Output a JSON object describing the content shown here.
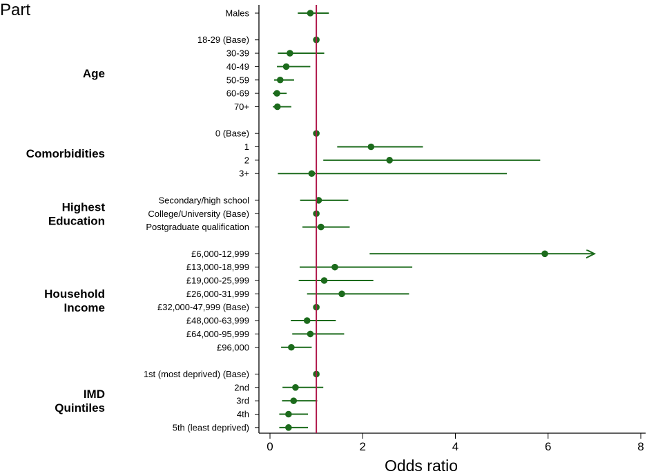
{
  "panel_label": "Part",
  "chart_data": {
    "type": "forest",
    "xlabel": "Odds ratio",
    "xlim": [
      0,
      8
    ],
    "xticks": [
      0,
      2,
      4,
      6,
      8
    ],
    "reference_line": 1,
    "colors": {
      "marker": "#1c6b1c",
      "reference": "#b0174a",
      "axis": "#000000"
    },
    "rows": [
      {
        "label": "Males",
        "group": "",
        "or": 0.87,
        "lo": 0.6,
        "hi": 1.27
      },
      {
        "label": "18-29 (Base)",
        "group": "Age",
        "or": 1.0,
        "lo": 1.0,
        "hi": 1.0
      },
      {
        "label": "30-39",
        "group": "Age",
        "or": 0.43,
        "lo": 0.17,
        "hi": 1.17
      },
      {
        "label": "40-49",
        "group": "Age",
        "or": 0.35,
        "lo": 0.15,
        "hi": 0.87
      },
      {
        "label": "50-59",
        "group": "Age",
        "or": 0.22,
        "lo": 0.09,
        "hi": 0.52
      },
      {
        "label": "60-69",
        "group": "Age",
        "or": 0.15,
        "lo": 0.06,
        "hi": 0.36
      },
      {
        "label": "70+",
        "group": "Age",
        "or": 0.16,
        "lo": 0.06,
        "hi": 0.46
      },
      {
        "label": "0 (Base)",
        "group": "Comorbidities",
        "or": 1.0,
        "lo": 1.0,
        "hi": 1.0
      },
      {
        "label": "1",
        "group": "Comorbidities",
        "or": 2.18,
        "lo": 1.45,
        "hi": 3.3
      },
      {
        "label": "2",
        "group": "Comorbidities",
        "or": 2.58,
        "lo": 1.15,
        "hi": 5.83
      },
      {
        "label": "3+",
        "group": "Comorbidities",
        "or": 0.9,
        "lo": 0.17,
        "hi": 5.11
      },
      {
        "label": "Secondary/high school",
        "group": "Highest Education",
        "or": 1.05,
        "lo": 0.65,
        "hi": 1.69
      },
      {
        "label": "College/University (Base)",
        "group": "Highest Education",
        "or": 1.0,
        "lo": 1.0,
        "hi": 1.0
      },
      {
        "label": "Postgraduate qualification",
        "group": "Highest Education",
        "or": 1.1,
        "lo": 0.7,
        "hi": 1.72
      },
      {
        "label": "£6,000-12,999",
        "group": "Household Income",
        "or": 5.93,
        "lo": 2.15,
        "hi": 7.0,
        "arrow": true
      },
      {
        "label": "£13,000-18,999",
        "group": "Household Income",
        "or": 1.4,
        "lo": 0.64,
        "hi": 3.07
      },
      {
        "label": "£19,000-25,999",
        "group": "Household Income",
        "or": 1.17,
        "lo": 0.62,
        "hi": 2.23
      },
      {
        "label": "£26,000-31,999",
        "group": "Household Income",
        "or": 1.55,
        "lo": 0.8,
        "hi": 3.0
      },
      {
        "label": "£32,000-47,999 (Base)",
        "group": "Household Income",
        "or": 1.0,
        "lo": 1.0,
        "hi": 1.0
      },
      {
        "label": "£48,000-63,999",
        "group": "Household Income",
        "or": 0.8,
        "lo": 0.45,
        "hi": 1.42
      },
      {
        "label": "£64,000-95,999",
        "group": "Household Income",
        "or": 0.87,
        "lo": 0.48,
        "hi": 1.6
      },
      {
        "label": "£96,000",
        "group": "Household Income",
        "or": 0.46,
        "lo": 0.24,
        "hi": 0.9
      },
      {
        "label": "1st (most deprived) (Base)",
        "group": "IMD Quintiles",
        "or": 1.0,
        "lo": 1.0,
        "hi": 1.0
      },
      {
        "label": "2nd",
        "group": "IMD Quintiles",
        "or": 0.55,
        "lo": 0.27,
        "hi": 1.15
      },
      {
        "label": "3rd",
        "group": "IMD Quintiles",
        "or": 0.51,
        "lo": 0.26,
        "hi": 1.02
      },
      {
        "label": "4th",
        "group": "IMD Quintiles",
        "or": 0.4,
        "lo": 0.2,
        "hi": 0.82
      },
      {
        "label": "5th (least deprived)",
        "group": "IMD Quintiles",
        "or": 0.4,
        "lo": 0.2,
        "hi": 0.82
      }
    ],
    "groups": [
      {
        "name": "Age",
        "lines": [
          "Age"
        ]
      },
      {
        "name": "Comorbidities",
        "lines": [
          "Comorbidities"
        ]
      },
      {
        "name": "Highest Education",
        "lines": [
          "Highest",
          "Education"
        ]
      },
      {
        "name": "Household Income",
        "lines": [
          "Household",
          "Income"
        ]
      },
      {
        "name": "IMD Quintiles",
        "lines": [
          "IMD",
          "Quintiles"
        ]
      }
    ]
  }
}
